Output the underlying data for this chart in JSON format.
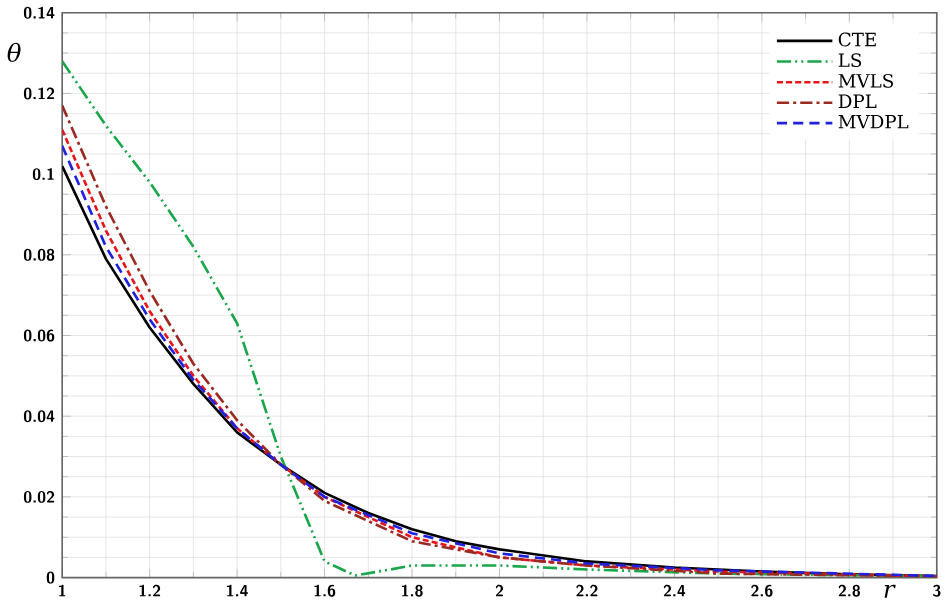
{
  "chart_data": {
    "type": "line",
    "xlabel": "r",
    "ylabel": "θ",
    "xlim": [
      1,
      3
    ],
    "ylim": [
      0,
      0.14
    ],
    "xticks": [
      1,
      1.2,
      1.4,
      1.6,
      1.8,
      2,
      2.2,
      2.4,
      2.6,
      2.8,
      3
    ],
    "yticks": [
      0,
      0.02,
      0.04,
      0.06,
      0.08,
      0.1,
      0.12,
      0.14
    ],
    "grid": true,
    "legend": "top right",
    "series": [
      {
        "name": "CTE",
        "color": "#000000",
        "line_style": "solid",
        "x": [
          1,
          1.1,
          1.2,
          1.3,
          1.4,
          1.5,
          1.6,
          1.7,
          1.8,
          1.9,
          2,
          2.2,
          2.4,
          2.6,
          2.8,
          3
        ],
        "values": [
          0.102,
          0.079,
          0.062,
          0.048,
          0.036,
          0.028,
          0.021,
          0.016,
          0.012,
          0.009,
          0.007,
          0.004,
          0.0025,
          0.0015,
          0.0008,
          0.0004
        ]
      },
      {
        "name": "LS",
        "color": "#1aa64a",
        "line_style": "dashdotdot",
        "x": [
          1,
          1.1,
          1.2,
          1.3,
          1.4,
          1.5,
          1.6,
          1.67,
          1.75,
          1.8,
          2,
          2.2,
          2.5,
          3
        ],
        "values": [
          0.128,
          0.112,
          0.098,
          0.082,
          0.063,
          0.03,
          0.004,
          0.0005,
          0.002,
          0.003,
          0.003,
          0.002,
          0.001,
          0.0003
        ]
      },
      {
        "name": "MVLS",
        "color": "#e8141c",
        "line_style": "dashed",
        "x": [
          1,
          1.1,
          1.2,
          1.3,
          1.4,
          1.5,
          1.6,
          1.8,
          2,
          2.2,
          2.5,
          3
        ],
        "values": [
          0.111,
          0.086,
          0.066,
          0.05,
          0.037,
          0.028,
          0.02,
          0.01,
          0.005,
          0.003,
          0.0015,
          0.0003
        ]
      },
      {
        "name": "DPL",
        "color": "#9b2a22",
        "line_style": "dashdot",
        "x": [
          1,
          1.1,
          1.2,
          1.3,
          1.4,
          1.5,
          1.6,
          1.8,
          2,
          2.2,
          2.5,
          3
        ],
        "values": [
          0.117,
          0.092,
          0.071,
          0.053,
          0.039,
          0.028,
          0.019,
          0.009,
          0.005,
          0.003,
          0.001,
          0.0003
        ]
      },
      {
        "name": "MVDPL",
        "color": "#2020e0",
        "line_style": "loosedashed",
        "x": [
          1,
          1.1,
          1.2,
          1.3,
          1.4,
          1.5,
          1.6,
          1.8,
          2,
          2.2,
          2.5,
          3
        ],
        "values": [
          0.107,
          0.082,
          0.064,
          0.049,
          0.037,
          0.028,
          0.02,
          0.011,
          0.006,
          0.0035,
          0.0018,
          0.0004
        ]
      }
    ]
  }
}
